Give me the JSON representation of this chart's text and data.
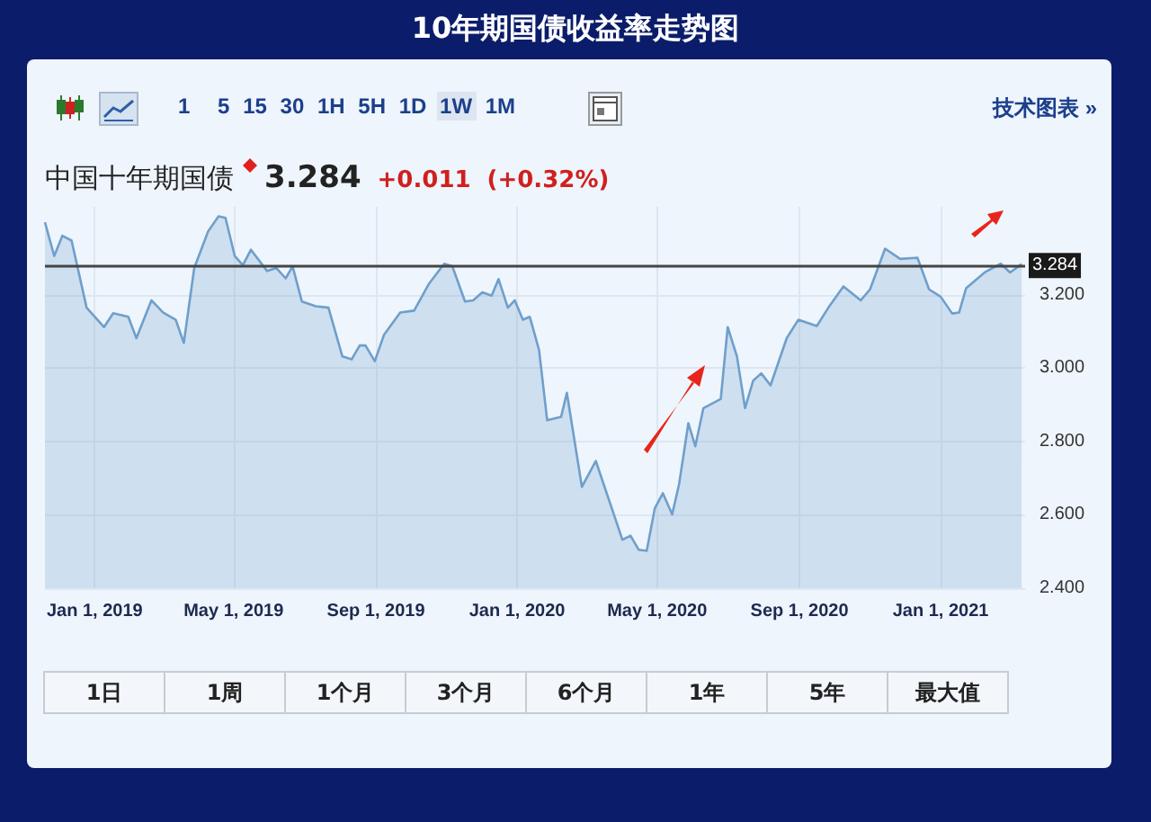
{
  "chart_data": {
    "type": "area",
    "title": "10年期国债收益率走势图",
    "subtitle": "中国十年期国债",
    "annotations": [
      "1 5 15 30 1H 5H 1D 1W 1M",
      "技术图表 »",
      "3.284",
      "+0.011",
      "(+0.32%)",
      "1日",
      "1周",
      "1个月",
      "3个月",
      "6个月",
      "1年",
      "5年",
      "最大值"
    ],
    "x": [
      "2018-11-19",
      "2018-11-27",
      "2018-12-04",
      "2018-12-12",
      "2018-12-25",
      "2019-01-09",
      "2019-01-17",
      "2019-01-30",
      "2019-02-06",
      "2019-02-19",
      "2019-03-01",
      "2019-03-12",
      "2019-03-19",
      "2019-03-28",
      "2019-04-09",
      "2019-04-18",
      "2019-04-24",
      "2019-05-02",
      "2019-05-09",
      "2019-05-16",
      "2019-05-30",
      "2019-06-07",
      "2019-06-15",
      "2019-06-21",
      "2019-06-29",
      "2019-07-11",
      "2019-07-22",
      "2019-08-03",
      "2019-08-11",
      "2019-08-18",
      "2019-08-23",
      "2019-08-31",
      "2019-09-08",
      "2019-09-22",
      "2019-10-04",
      "2019-10-17",
      "2019-10-30",
      "2019-11-06",
      "2019-11-17",
      "2019-11-24",
      "2019-12-02",
      "2019-12-10",
      "2019-12-16",
      "2019-12-24",
      "2019-12-30",
      "2020-01-06",
      "2020-01-12",
      "2020-01-20",
      "2020-01-27",
      "2020-02-08",
      "2020-02-13",
      "2020-02-26",
      "2020-03-09",
      "2020-04-01",
      "2020-04-08",
      "2020-04-15",
      "2020-04-22",
      "2020-04-29",
      "2020-05-06",
      "2020-05-14",
      "2020-05-20",
      "2020-05-28",
      "2020-06-03",
      "2020-06-10",
      "2020-06-25",
      "2020-07-01",
      "2020-07-09",
      "2020-07-16",
      "2020-07-23",
      "2020-07-30",
      "2020-08-07",
      "2020-08-21",
      "2020-08-31",
      "2020-09-16",
      "2020-09-26",
      "2020-10-09",
      "2020-10-24",
      "2020-11-01",
      "2020-11-14",
      "2020-11-27",
      "2020-12-12",
      "2020-12-22",
      "2021-01-01",
      "2021-01-11",
      "2021-01-17",
      "2021-01-23",
      "2021-02-08",
      "2021-02-22",
      "2021-03-02",
      "2021-03-12"
    ],
    "series": [
      {
        "color": "#6f9fcb",
        "values": [
          3.398,
          3.306,
          3.361,
          3.348,
          3.165,
          3.112,
          3.15,
          3.14,
          3.082,
          3.185,
          3.152,
          3.132,
          3.069,
          3.273,
          3.373,
          3.414,
          3.41,
          3.306,
          3.281,
          3.323,
          3.265,
          3.273,
          3.245,
          3.278,
          3.182,
          3.169,
          3.165,
          3.032,
          3.024,
          3.062,
          3.062,
          3.019,
          3.091,
          3.152,
          3.157,
          3.231,
          3.285,
          3.278,
          3.182,
          3.185,
          3.207,
          3.198,
          3.243,
          3.165,
          3.185,
          3.132,
          3.14,
          3.049,
          2.858,
          2.867,
          2.933,
          2.676,
          2.747,
          2.532,
          2.543,
          2.505,
          2.502,
          2.618,
          2.659,
          2.601,
          2.684,
          2.85,
          2.787,
          2.891,
          2.916,
          3.112,
          3.032,
          2.891,
          2.966,
          2.986,
          2.953,
          3.082,
          3.132,
          3.115,
          3.165,
          3.223,
          3.185,
          3.215,
          3.326,
          3.298,
          3.301,
          3.215,
          3.195,
          3.149,
          3.152,
          3.218,
          3.261,
          3.285,
          3.261,
          3.284
        ]
      }
    ],
    "xlim": [
      "2018-11-19",
      "2021-03-15"
    ],
    "xticks": [
      {
        "value": "2019-01-01",
        "label": "Jan 1, 2019"
      },
      {
        "value": "2019-05-01",
        "label": "May 1, 2019"
      },
      {
        "value": "2019-09-01",
        "label": "Sep 1, 2019"
      },
      {
        "value": "2020-01-01",
        "label": "Jan 1, 2020"
      },
      {
        "value": "2020-05-01",
        "label": "May 1, 2020"
      },
      {
        "value": "2020-09-01",
        "label": "Sep 1, 2020"
      },
      {
        "value": "2021-01-01",
        "label": "Jan 1, 2021"
      }
    ],
    "ylim": [
      2.4,
      3.44
    ],
    "yticks": [
      {
        "value": 2.4,
        "label": "2.400"
      },
      {
        "value": 2.6,
        "label": "2.600"
      },
      {
        "value": 2.8,
        "label": "2.800"
      },
      {
        "value": 3.0,
        "label": "3.000"
      },
      {
        "value": 3.2,
        "label": "3.200"
      }
    ],
    "ref_lines": [
      {
        "axis": "y",
        "value": 3.284,
        "label": "3.284",
        "color": "#444444"
      }
    ],
    "grid": true
  }
}
